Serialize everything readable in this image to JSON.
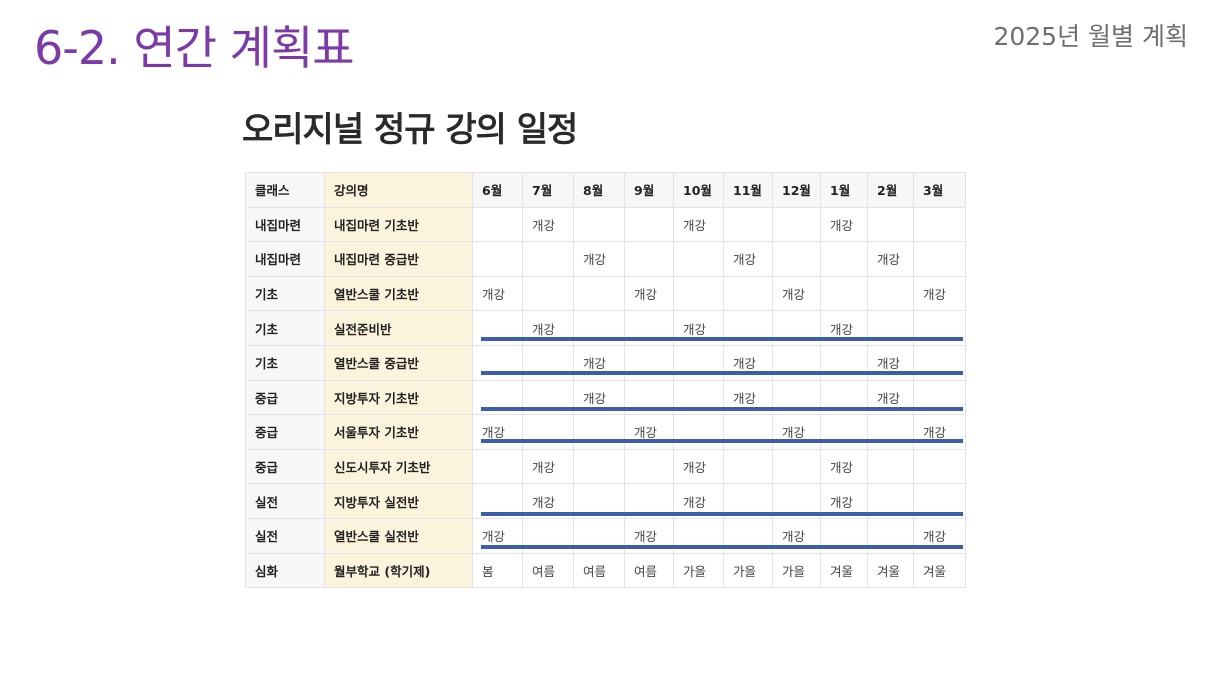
{
  "header": {
    "title": "6-2. 연간 계획표",
    "subtitle": "2025년 월별 계획"
  },
  "section": {
    "heading": "오리지널 정규 강의 일정"
  },
  "table": {
    "columns": [
      "클래스",
      "강의명",
      "6월",
      "7월",
      "8월",
      "9월",
      "10월",
      "11월",
      "12월",
      "1월",
      "2월",
      "3월"
    ],
    "rows": [
      {
        "class": "내집마련",
        "name": "내집마련 기초반",
        "months": [
          "",
          "개강",
          "",
          "",
          "개강",
          "",
          "",
          "개강",
          "",
          ""
        ]
      },
      {
        "class": "내집마련",
        "name": "내집마련 중급반",
        "months": [
          "",
          "",
          "개강",
          "",
          "",
          "개강",
          "",
          "",
          "개강",
          ""
        ]
      },
      {
        "class": "기초",
        "name": "열반스쿨 기초반",
        "months": [
          "개강",
          "",
          "",
          "개강",
          "",
          "",
          "개강",
          "",
          "",
          "개강"
        ]
      },
      {
        "class": "기초",
        "name": "실전준비반",
        "months": [
          "",
          "개강",
          "",
          "",
          "개강",
          "",
          "",
          "개강",
          "",
          ""
        ]
      },
      {
        "class": "기초",
        "name": "열반스쿨 중급반",
        "months": [
          "",
          "",
          "개강",
          "",
          "",
          "개강",
          "",
          "",
          "개강",
          ""
        ]
      },
      {
        "class": "중급",
        "name": "지방투자 기초반",
        "months": [
          "",
          "",
          "개강",
          "",
          "",
          "개강",
          "",
          "",
          "개강",
          ""
        ]
      },
      {
        "class": "중급",
        "name": "서울투자 기초반",
        "months": [
          "개강",
          "",
          "",
          "개강",
          "",
          "",
          "개강",
          "",
          "",
          "개강"
        ]
      },
      {
        "class": "중급",
        "name": "신도시투자 기초반",
        "months": [
          "",
          "개강",
          "",
          "",
          "개강",
          "",
          "",
          "개강",
          "",
          ""
        ]
      },
      {
        "class": "실전",
        "name": "지방투자 실전반",
        "months": [
          "",
          "개강",
          "",
          "",
          "개강",
          "",
          "",
          "개강",
          "",
          ""
        ]
      },
      {
        "class": "실전",
        "name": "열반스쿨 실전반",
        "months": [
          "개강",
          "",
          "",
          "개강",
          "",
          "",
          "개강",
          "",
          "",
          "개강"
        ]
      },
      {
        "class": "심화",
        "name": "월부학교 (학기제)",
        "months": [
          "봄",
          "여름",
          "여름",
          "여름",
          "가을",
          "가을",
          "가을",
          "겨울",
          "겨울",
          "겨울"
        ]
      }
    ]
  },
  "colors": {
    "title": "#7b3aa6",
    "name_column_bg": "#fcf3dc",
    "highlight_bar": "#3b5ea8"
  }
}
